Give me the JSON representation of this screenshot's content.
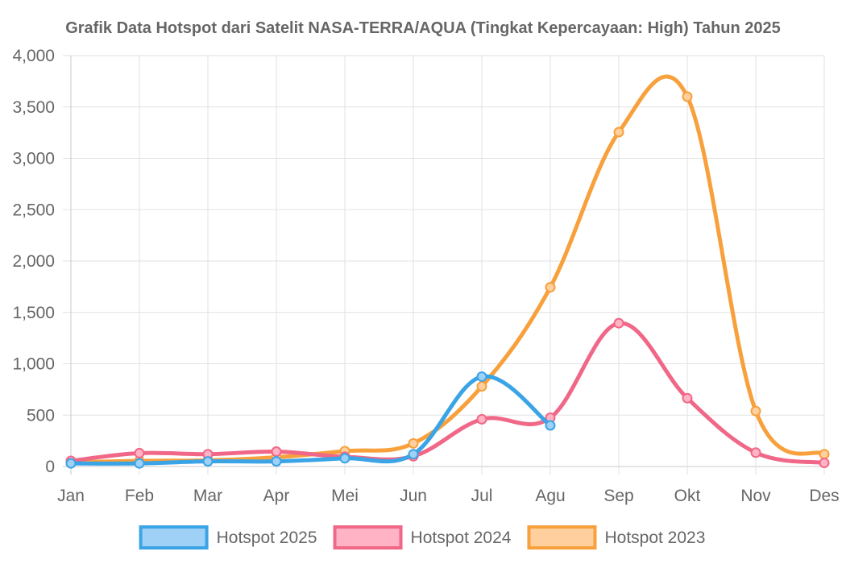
{
  "chart_data": {
    "type": "line",
    "title": "Grafik Data Hotspot dari Satelit NASA-TERRA/AQUA (Tingkat Kepercayaan: High) Tahun 2025",
    "xlabel": "",
    "ylabel": "",
    "categories": [
      "Jan",
      "Feb",
      "Mar",
      "Apr",
      "Mei",
      "Jun",
      "Jul",
      "Agu",
      "Sep",
      "Okt",
      "Nov",
      "Des"
    ],
    "ylim": [
      0,
      4000
    ],
    "y_ticks": [
      0,
      500,
      1000,
      1500,
      2000,
      2500,
      3000,
      3500,
      4000
    ],
    "y_tick_labels": [
      "0",
      "500",
      "1,000",
      "1,500",
      "2,000",
      "2,500",
      "3,000",
      "3,500",
      "4,000"
    ],
    "grid": true,
    "legend_position": "bottom",
    "series": [
      {
        "name": "Hotspot 2023",
        "color": "#f7a03c",
        "fill_color": "#ffd09e",
        "values": [
          40,
          55,
          60,
          90,
          150,
          225,
          780,
          1745,
          3255,
          3600,
          540,
          120
        ]
      },
      {
        "name": "Hotspot 2024",
        "color": "#f06787",
        "fill_color": "#ffb3c4",
        "values": [
          55,
          130,
          120,
          145,
          95,
          100,
          460,
          475,
          1395,
          665,
          135,
          35
        ]
      },
      {
        "name": "Hotspot 2025",
        "color": "#3aa4e6",
        "fill_color": "#9fd0f5",
        "values": [
          30,
          30,
          50,
          50,
          80,
          120,
          875,
          400,
          null,
          null,
          null,
          null
        ]
      }
    ],
    "legend_order": [
      "Hotspot 2025",
      "Hotspot 2024",
      "Hotspot 2023"
    ]
  }
}
